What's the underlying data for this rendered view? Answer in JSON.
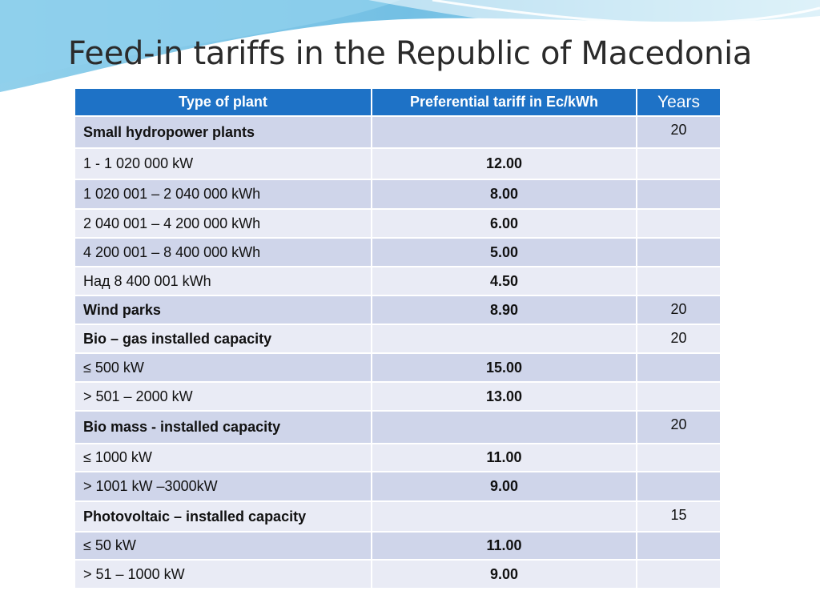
{
  "title": "Feed-in tariffs in the Republic of Macedonia",
  "colors": {
    "header_bg": "#1e72c6",
    "row_dark": "#cfd5ea",
    "row_light": "#e9ebf5",
    "wave": "#5bb8e0"
  },
  "table": {
    "headers": {
      "type": "Type of plant",
      "tariff": "Preferential tariff in Ec/kWh",
      "years": "Years"
    },
    "rows": [
      {
        "type": "Small hydropower plants",
        "tariff": "",
        "years": "20"
      },
      {
        "type": "1 - 1 020 000 kW",
        "tariff": "12.00",
        "years": ""
      },
      {
        "type": "1 020 001 – 2 040 000 kWh",
        "tariff": "8.00",
        "years": ""
      },
      {
        "type": "2 040 001 – 4 200 000 kWh",
        "tariff": "6.00",
        "years": ""
      },
      {
        "type": "4 200 001 – 8 400 000 kWh",
        "tariff": "5.00",
        "years": ""
      },
      {
        "type": "Над 8 400 001 kWh",
        "tariff": "4.50",
        "years": ""
      },
      {
        "type": "Wind parks",
        "tariff": "8.90",
        "years": "20"
      },
      {
        "type": "Bio – gas installed capacity",
        "tariff": "",
        "years": "20"
      },
      {
        "type": "≤ 500 kW",
        "tariff": "15.00",
        "years": ""
      },
      {
        "type": "> 501 – 2000 kW",
        "tariff": "13.00",
        "years": ""
      },
      {
        "type": "Bio mass  - installed capacity",
        "tariff": "",
        "years": "20"
      },
      {
        "type": "≤ 1000 kW",
        "tariff": "11.00",
        "years": ""
      },
      {
        "type": "> 1001 kW –3000kW",
        "tariff": "9.00",
        "years": ""
      },
      {
        "type": "Photovoltaic – installed capacity",
        "tariff": "",
        "years": "15"
      },
      {
        "type": "≤ 50 kW",
        "tariff": "11.00",
        "years": ""
      },
      {
        "type": "> 51 – 1000 kW",
        "tariff": "9.00",
        "years": ""
      }
    ]
  }
}
